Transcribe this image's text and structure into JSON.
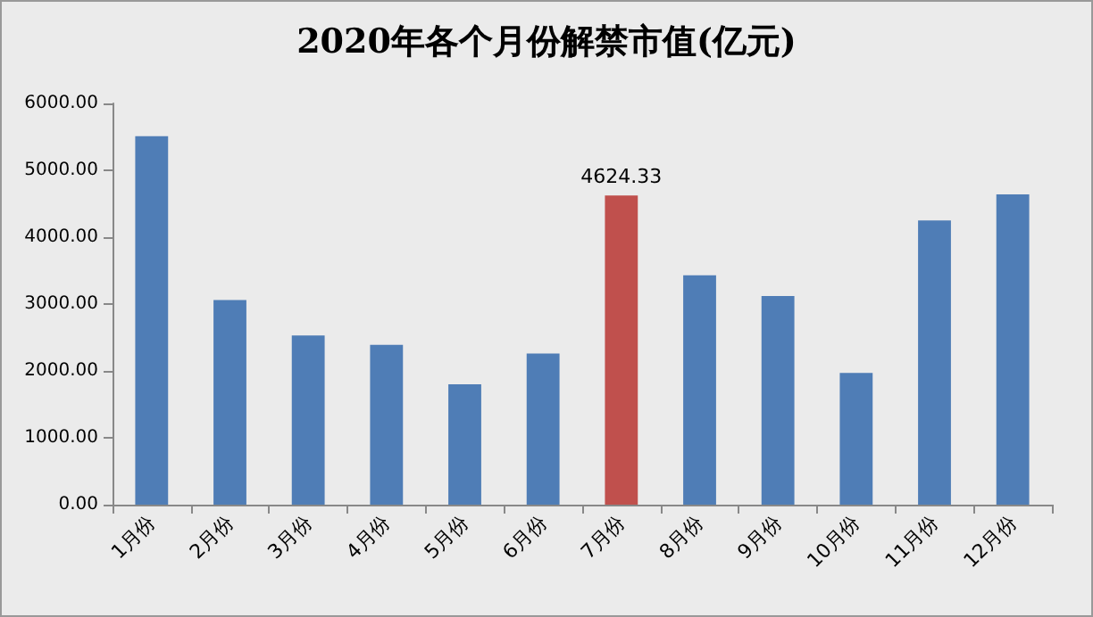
{
  "chart_data": {
    "type": "bar",
    "title": "2020年各个月份解禁市值(亿元)",
    "categories": [
      "1月份",
      "2月份",
      "3月份",
      "4月份",
      "5月份",
      "6月份",
      "7月份",
      "8月份",
      "9月份",
      "10月份",
      "11月份",
      "12月份"
    ],
    "values": [
      5510,
      3060,
      2530,
      2390,
      1800,
      2260,
      4624.33,
      3430,
      3120,
      1970,
      4250,
      4640
    ],
    "colors": [
      "#4f7db6",
      "#4f7db6",
      "#4f7db6",
      "#4f7db6",
      "#4f7db6",
      "#4f7db6",
      "#c0504d",
      "#4f7db6",
      "#4f7db6",
      "#4f7db6",
      "#4f7db6",
      "#4f7db6"
    ],
    "value_labels": [
      null,
      null,
      null,
      null,
      null,
      null,
      "4624.33",
      null,
      null,
      null,
      null,
      null
    ],
    "ylim": [
      0,
      6000
    ],
    "yticks": [
      {
        "value": 0,
        "label": "0.00"
      },
      {
        "value": 1000,
        "label": "1000.00"
      },
      {
        "value": 2000,
        "label": "2000.00"
      },
      {
        "value": 3000,
        "label": "3000.00"
      },
      {
        "value": 4000,
        "label": "4000.00"
      },
      {
        "value": 5000,
        "label": "5000.00"
      },
      {
        "value": 6000,
        "label": "6000.00"
      }
    ],
    "grid": false
  }
}
